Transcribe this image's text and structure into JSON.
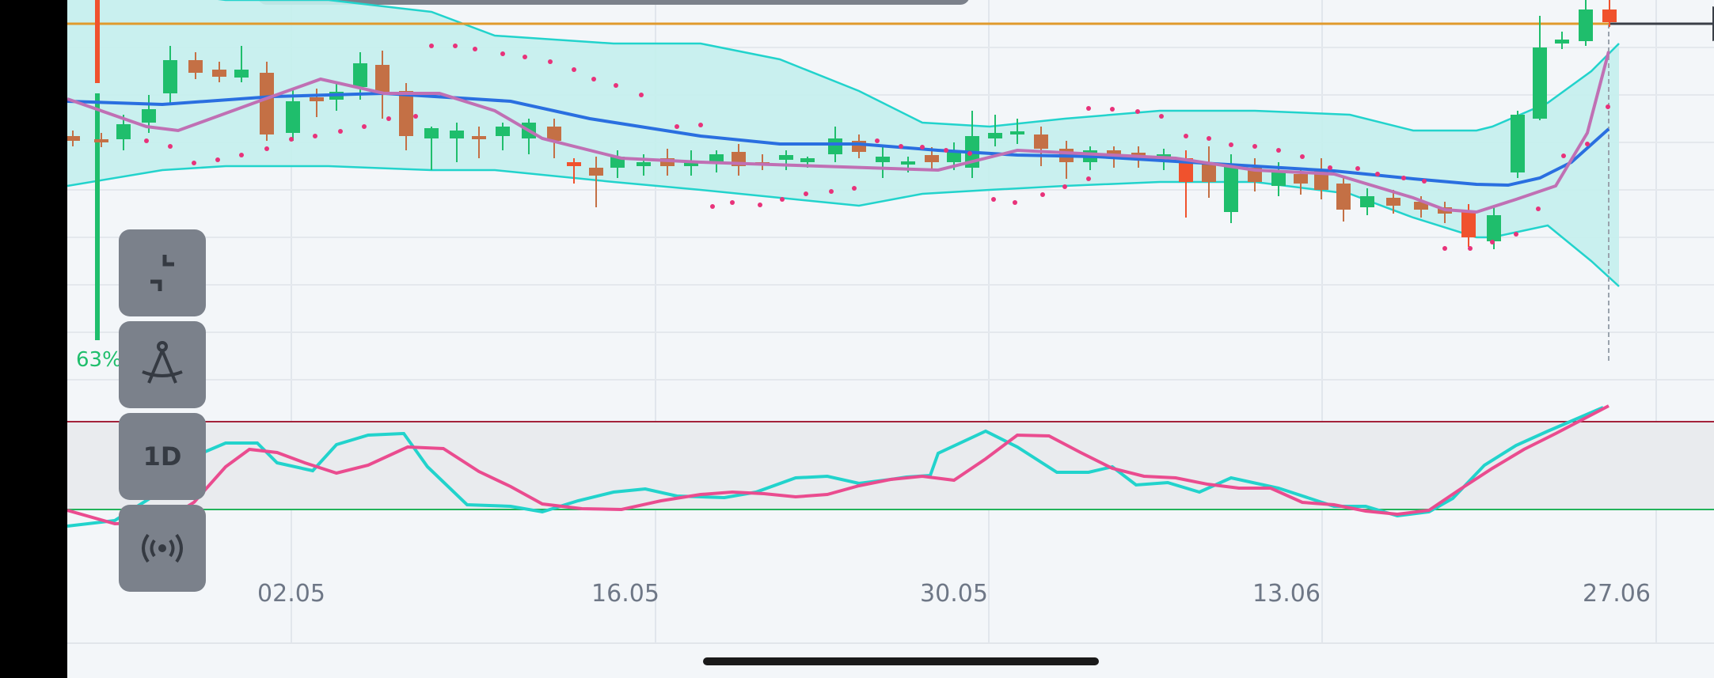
{
  "toolbar": {
    "collapse_icon": "collapse-icon",
    "drawing_icon": "compass-drawing-icon",
    "timeframe_label": "1D",
    "signal_icon": "broadcast-icon"
  },
  "indicator": {
    "percent_label": "63%",
    "percent_value": 0.63
  },
  "x_axis": {
    "labels": [
      "02.05",
      "16.05",
      "30.05",
      "13.06",
      "27.06"
    ]
  },
  "colors": {
    "bull": "#1fbe6c",
    "bear": "#c47045",
    "bear_strong": "#f0522d",
    "band_fill": "#c4f0ed",
    "band_line": "#22d3cc",
    "ma_blue": "#2a6fe0",
    "ma_purple": "#c070b4",
    "sar_dot": "#e8327a",
    "stoch_k": "#22d3cc",
    "stoch_d": "#ea4c8f",
    "upper_level": "#a3223a",
    "lower_level": "#22b35a",
    "price_line": "#e09a2c"
  }
}
